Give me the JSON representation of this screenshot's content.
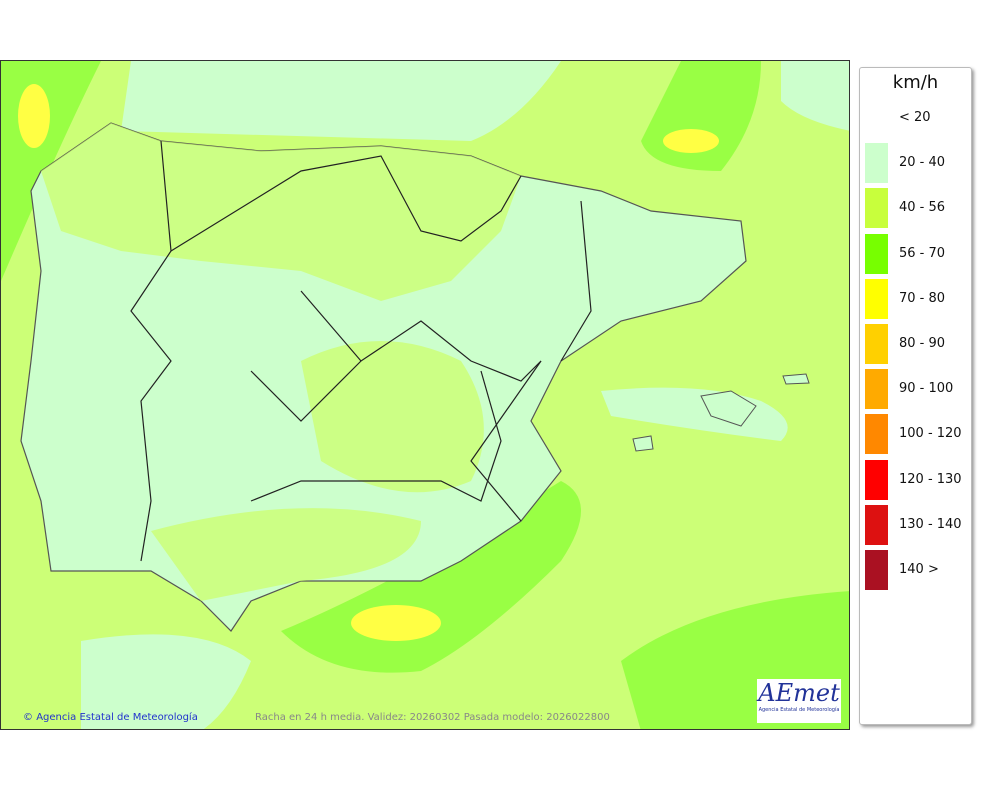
{
  "map": {
    "credit": "Agencia Estatal de Meteorología",
    "caption": "Racha en 24 h media. Validez: 20260302 Pasada modelo: 2026022800",
    "logo_text": "AEmet",
    "logo_subtitle": "Agencia Estatal de Meteorología"
  },
  "legend": {
    "unit": "km/h",
    "items": [
      {
        "label": "< 20",
        "color": "#ffffff"
      },
      {
        "label": "20 - 40",
        "color": "#ccffcc"
      },
      {
        "label": "40 - 56",
        "color": "#c8ff3c"
      },
      {
        "label": "56 - 70",
        "color": "#77ff00"
      },
      {
        "label": "70 - 80",
        "color": "#ffff00"
      },
      {
        "label": "80 - 90",
        "color": "#ffd000"
      },
      {
        "label": "90 - 100",
        "color": "#ffaa00"
      },
      {
        "label": "100 - 120",
        "color": "#ff8800"
      },
      {
        "label": "120 - 130",
        "color": "#ff0000"
      },
      {
        "label": "130 - 140",
        "color": "#dd1111"
      },
      {
        "label": "140 >",
        "color": "#aa1122"
      }
    ]
  }
}
